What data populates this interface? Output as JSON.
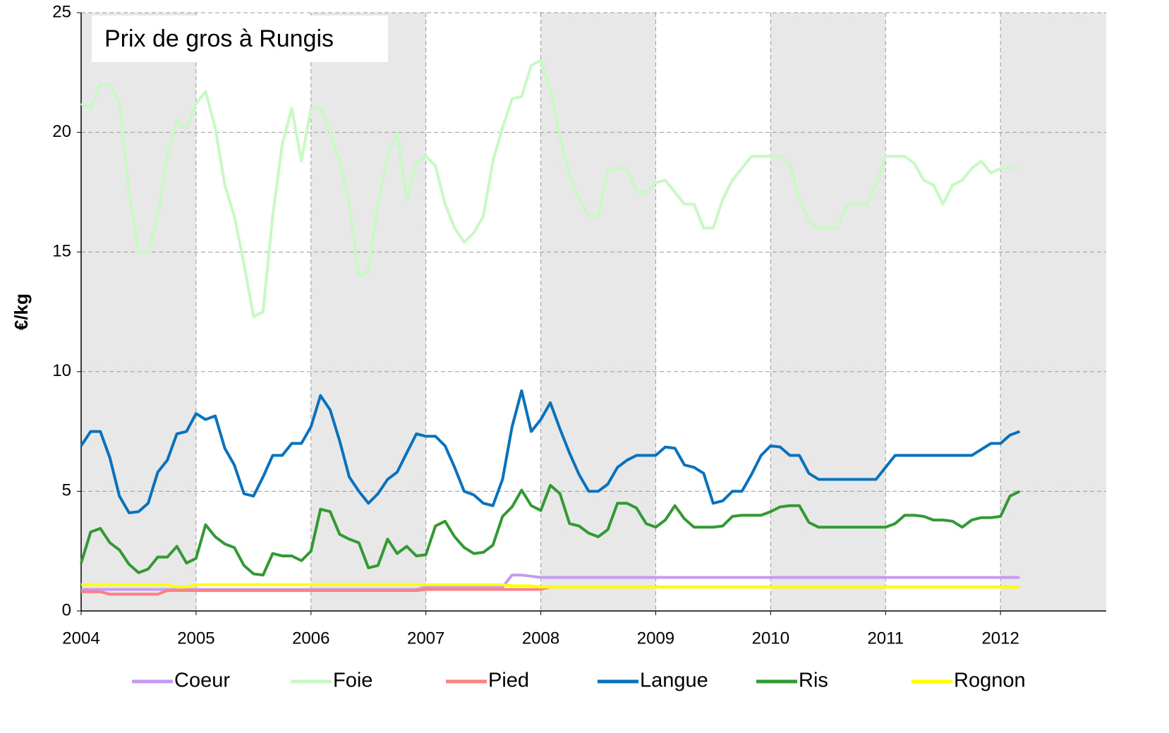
{
  "chart_data": {
    "type": "line",
    "title": "Prix de gros à Rungis",
    "y_label": "€/kg",
    "x": [
      2004,
      2004.083,
      2004.167,
      2004.25,
      2004.333,
      2004.417,
      2004.5,
      2004.583,
      2004.667,
      2004.75,
      2004.833,
      2004.917,
      2005,
      2005.083,
      2005.167,
      2005.25,
      2005.333,
      2005.417,
      2005.5,
      2005.583,
      2005.667,
      2005.75,
      2005.833,
      2005.917,
      2006,
      2006.083,
      2006.167,
      2006.25,
      2006.333,
      2006.417,
      2006.5,
      2006.583,
      2006.667,
      2006.75,
      2006.833,
      2006.917,
      2007,
      2007.083,
      2007.167,
      2007.25,
      2007.333,
      2007.417,
      2007.5,
      2007.583,
      2007.667,
      2007.75,
      2007.833,
      2007.917,
      2008,
      2008.083,
      2008.167,
      2008.25,
      2008.333,
      2008.417,
      2008.5,
      2008.583,
      2008.667,
      2008.75,
      2008.833,
      2008.917,
      2009,
      2009.083,
      2009.167,
      2009.25,
      2009.333,
      2009.417,
      2009.5,
      2009.583,
      2009.667,
      2009.75,
      2009.833,
      2009.917,
      2010,
      2010.083,
      2010.167,
      2010.25,
      2010.333,
      2010.417,
      2010.5,
      2010.583,
      2010.667,
      2010.75,
      2010.833,
      2010.917,
      2011,
      2011.083,
      2011.167,
      2011.25,
      2011.333,
      2011.417,
      2011.5,
      2011.583,
      2011.667,
      2011.75,
      2011.833,
      2011.917,
      2012,
      2012.083,
      2012.167
    ],
    "series": [
      {
        "name": "Coeur",
        "color": "#c39bf0",
        "values": [
          0.9,
          0.9,
          0.9,
          0.9,
          0.9,
          0.9,
          0.9,
          0.9,
          0.9,
          0.9,
          0.9,
          0.9,
          0.9,
          0.9,
          0.9,
          0.9,
          0.9,
          0.9,
          0.9,
          0.9,
          0.9,
          0.9,
          0.9,
          0.9,
          0.9,
          0.9,
          0.9,
          0.9,
          0.9,
          0.9,
          0.9,
          0.9,
          0.9,
          0.9,
          0.9,
          0.9,
          1.0,
          1.0,
          1.0,
          1.0,
          1.0,
          1.0,
          1.0,
          1.0,
          1.0,
          1.5,
          1.5,
          1.45,
          1.4,
          1.4,
          1.4,
          1.4,
          1.4,
          1.4,
          1.4,
          1.4,
          1.4,
          1.4,
          1.4,
          1.4,
          1.4,
          1.4,
          1.4,
          1.4,
          1.4,
          1.4,
          1.4,
          1.4,
          1.4,
          1.4,
          1.4,
          1.4,
          1.4,
          1.4,
          1.4,
          1.4,
          1.4,
          1.4,
          1.4,
          1.4,
          1.4,
          1.4,
          1.4,
          1.4,
          1.4,
          1.4,
          1.4,
          1.4,
          1.4,
          1.4,
          1.4,
          1.4,
          1.4,
          1.4,
          1.4,
          1.4,
          1.4,
          1.4,
          1.4
        ]
      },
      {
        "name": "Foie",
        "color": "#c8f8c4",
        "values": [
          21.2,
          21.0,
          22.0,
          22.0,
          21.2,
          17.5,
          15.0,
          15.0,
          16.5,
          19.0,
          20.5,
          20.2,
          21.2,
          21.7,
          20.2,
          17.8,
          16.5,
          14.5,
          12.3,
          12.5,
          16.5,
          19.5,
          21.0,
          18.8,
          21.0,
          21.0,
          20.0,
          18.8,
          17.0,
          14.0,
          14.2,
          17.0,
          19.0,
          20.0,
          17.2,
          18.7,
          19.0,
          18.6,
          17.0,
          16.0,
          15.4,
          15.8,
          16.5,
          18.8,
          20.2,
          21.4,
          21.5,
          22.8,
          23.0,
          21.8,
          19.8,
          18.2,
          17.2,
          16.5,
          16.5,
          18.4,
          18.5,
          18.5,
          17.5,
          17.5,
          17.9,
          18.0,
          17.5,
          17.0,
          17.0,
          16.0,
          16.0,
          17.2,
          18.0,
          18.5,
          19.0,
          19.0,
          19.0,
          19.0,
          18.7,
          17.2,
          16.3,
          16.0,
          16.0,
          16.0,
          17.0,
          17.0,
          17.0,
          17.8,
          19.0,
          19.0,
          19.0,
          18.7,
          18.0,
          17.8,
          17.0,
          17.8,
          18.0,
          18.5,
          18.8,
          18.3,
          18.5,
          18.5,
          18.5
        ]
      },
      {
        "name": "Pied",
        "color": "#ff8080",
        "values": [
          0.8,
          0.8,
          0.8,
          0.7,
          0.7,
          0.7,
          0.7,
          0.7,
          0.7,
          0.85,
          0.85,
          0.85,
          0.85,
          0.85,
          0.85,
          0.85,
          0.85,
          0.85,
          0.85,
          0.85,
          0.85,
          0.85,
          0.85,
          0.85,
          0.85,
          0.85,
          0.85,
          0.85,
          0.85,
          0.85,
          0.85,
          0.85,
          0.85,
          0.85,
          0.85,
          0.85,
          0.9,
          0.9,
          0.9,
          0.9,
          0.9,
          0.9,
          0.9,
          0.9,
          0.9,
          0.9,
          0.9,
          0.9,
          0.9,
          1.0,
          1.0,
          1.0,
          1.0,
          1.0,
          1.0,
          1.0,
          1.0,
          1.0,
          1.0,
          1.0,
          1.0,
          1.0,
          1.0,
          1.0,
          1.0,
          1.0,
          1.0,
          1.0,
          1.0,
          1.0,
          1.0,
          1.0,
          1.0,
          1.0,
          1.0,
          1.0,
          1.0,
          1.0,
          1.0,
          1.0,
          1.0,
          1.0,
          1.0,
          1.0,
          1.0,
          1.0,
          1.0,
          1.0,
          1.0,
          1.0,
          1.0,
          1.0,
          1.0,
          1.0,
          1.0,
          1.0,
          1.0,
          1.0,
          1.0
        ]
      },
      {
        "name": "Langue",
        "color": "#0a72bd",
        "values": [
          6.9,
          7.5,
          7.5,
          6.4,
          4.8,
          4.1,
          4.15,
          4.5,
          5.8,
          6.3,
          7.4,
          7.5,
          8.25,
          8.0,
          8.15,
          6.8,
          6.1,
          4.9,
          4.8,
          5.6,
          6.5,
          6.5,
          7.0,
          7.0,
          7.7,
          9.0,
          8.4,
          7.1,
          5.6,
          5.0,
          4.5,
          4.9,
          5.5,
          5.8,
          6.6,
          7.4,
          7.3,
          7.3,
          6.9,
          6.0,
          5.0,
          4.85,
          4.5,
          4.4,
          5.5,
          7.7,
          9.2,
          7.5,
          8.0,
          8.7,
          7.6,
          6.6,
          5.7,
          5.0,
          5.0,
          5.3,
          6.0,
          6.3,
          6.5,
          6.5,
          6.5,
          6.85,
          6.8,
          6.1,
          6.0,
          5.75,
          4.5,
          4.6,
          5.0,
          5.0,
          5.7,
          6.5,
          6.9,
          6.85,
          6.5,
          6.5,
          5.75,
          5.5,
          5.5,
          5.5,
          5.5,
          5.5,
          5.5,
          5.5,
          6.0,
          6.5,
          6.5,
          6.5,
          6.5,
          6.5,
          6.5,
          6.5,
          6.5,
          6.5,
          6.75,
          7.0,
          7.0,
          7.35,
          7.5
        ]
      },
      {
        "name": "Ris",
        "color": "#339933",
        "values": [
          2.0,
          3.3,
          3.45,
          2.85,
          2.55,
          1.95,
          1.6,
          1.75,
          2.25,
          2.25,
          2.7,
          2.0,
          2.2,
          3.6,
          3.1,
          2.8,
          2.65,
          1.9,
          1.55,
          1.5,
          2.4,
          2.3,
          2.3,
          2.1,
          2.5,
          4.25,
          4.15,
          3.2,
          3.0,
          2.85,
          1.8,
          1.9,
          3.0,
          2.4,
          2.7,
          2.3,
          2.35,
          3.55,
          3.75,
          3.1,
          2.65,
          2.4,
          2.45,
          2.75,
          3.95,
          4.35,
          5.05,
          4.4,
          4.2,
          5.25,
          4.9,
          3.65,
          3.55,
          3.25,
          3.1,
          3.4,
          4.5,
          4.5,
          4.3,
          3.65,
          3.5,
          3.8,
          4.4,
          3.85,
          3.5,
          3.5,
          3.5,
          3.55,
          3.95,
          4.0,
          4.0,
          4.0,
          4.15,
          4.35,
          4.4,
          4.4,
          3.7,
          3.5,
          3.5,
          3.5,
          3.5,
          3.5,
          3.5,
          3.5,
          3.5,
          3.65,
          4.0,
          4.0,
          3.95,
          3.8,
          3.8,
          3.75,
          3.5,
          3.8,
          3.9,
          3.9,
          3.95,
          4.8,
          5.0
        ]
      },
      {
        "name": "Rognon",
        "color": "#ffff00",
        "values": [
          1.1,
          1.1,
          1.1,
          1.1,
          1.1,
          1.1,
          1.1,
          1.1,
          1.1,
          1.1,
          1.0,
          1.0,
          1.1,
          1.1,
          1.1,
          1.1,
          1.1,
          1.1,
          1.1,
          1.1,
          1.1,
          1.1,
          1.1,
          1.1,
          1.1,
          1.1,
          1.1,
          1.1,
          1.1,
          1.1,
          1.1,
          1.1,
          1.1,
          1.1,
          1.1,
          1.1,
          1.1,
          1.1,
          1.1,
          1.1,
          1.1,
          1.1,
          1.1,
          1.1,
          1.1,
          1.05,
          1.05,
          1.05,
          1.0,
          1.0,
          1.0,
          1.0,
          1.0,
          1.0,
          1.0,
          1.0,
          1.0,
          1.0,
          1.0,
          1.0,
          1.0,
          1.0,
          1.0,
          1.0,
          1.0,
          1.0,
          1.0,
          1.0,
          1.0,
          1.0,
          1.0,
          1.0,
          1.0,
          1.0,
          1.0,
          1.0,
          1.0,
          1.0,
          1.0,
          1.0,
          1.0,
          1.0,
          1.0,
          1.0,
          1.0,
          1.0,
          1.0,
          1.0,
          1.0,
          1.0,
          1.0,
          1.0,
          1.0,
          1.0,
          1.0,
          1.0,
          1.0,
          1.0,
          1.0
        ]
      }
    ],
    "xlim": [
      2004,
      2012.92
    ],
    "xticks": [
      2004,
      2005,
      2006,
      2007,
      2008,
      2009,
      2010,
      2011,
      2012
    ],
    "ylim": [
      0,
      25
    ],
    "yticks": [
      0,
      5,
      10,
      15,
      20,
      25
    ],
    "grid": true,
    "alternate_shading": true,
    "legend": "bottom"
  }
}
